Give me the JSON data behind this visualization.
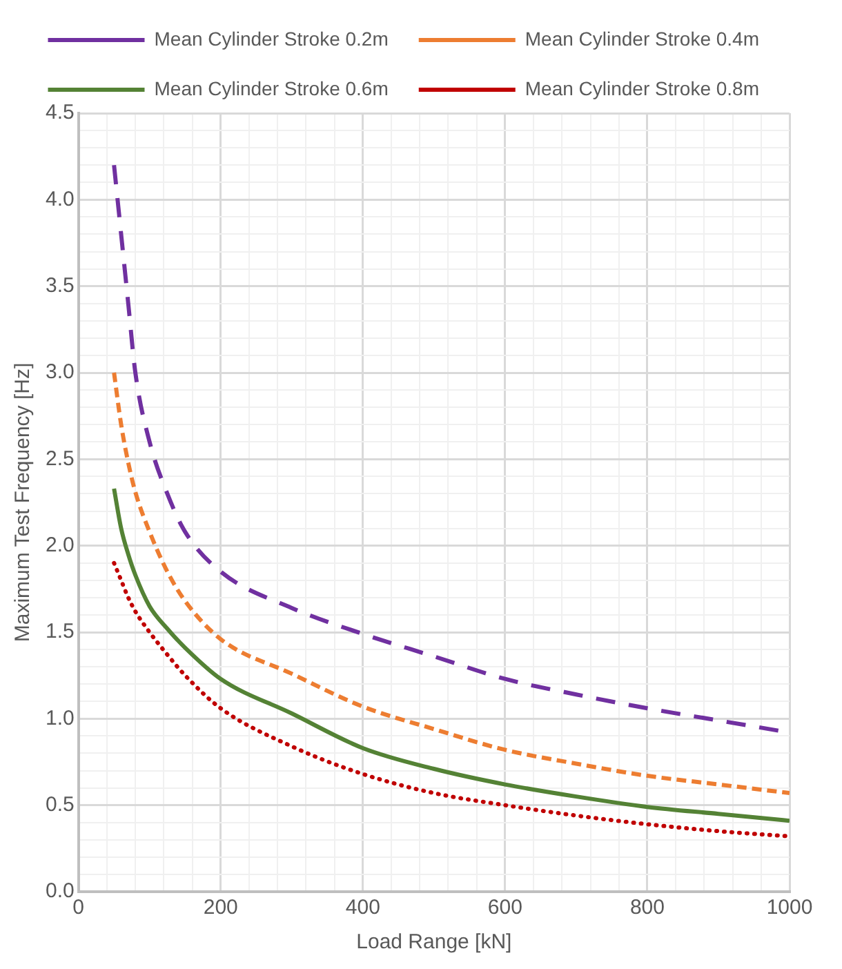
{
  "chart_data": {
    "type": "line",
    "xlabel": "Load Range [kN]",
    "ylabel": "Maximum Test Frequency [Hz]",
    "x": [
      50,
      60,
      70,
      80,
      100,
      125,
      150,
      200,
      300,
      400,
      500,
      600,
      700,
      800,
      900,
      1000
    ],
    "xlim": [
      0,
      1000
    ],
    "xticks": [
      0,
      {
        "value": 40,
        "label": null
      },
      {
        "value": 80,
        "label": null
      },
      {
        "value": 120,
        "label": null
      },
      {
        "value": 160,
        "label": null
      },
      200,
      {
        "value": 240,
        "label": null
      },
      {
        "value": 280,
        "label": null
      },
      {
        "value": 320,
        "label": null
      },
      {
        "value": 360,
        "label": null
      },
      400,
      {
        "value": 440,
        "label": null
      },
      {
        "value": 480,
        "label": null
      },
      {
        "value": 520,
        "label": null
      },
      {
        "value": 560,
        "label": null
      },
      600,
      {
        "value": 640,
        "label": null
      },
      {
        "value": 680,
        "label": null
      },
      {
        "value": 720,
        "label": null
      },
      {
        "value": 760,
        "label": null
      },
      800,
      {
        "value": 840,
        "label": null
      },
      {
        "value": 880,
        "label": null
      },
      {
        "value": 920,
        "label": null
      },
      {
        "value": 960,
        "label": null
      },
      1000
    ],
    "ylim": [
      0,
      4.5
    ],
    "yticks": [
      {
        "value": 0,
        "label": "0.0"
      },
      {
        "value": 0.1,
        "label": null
      },
      {
        "value": 0.2,
        "label": null
      },
      {
        "value": 0.3,
        "label": null
      },
      {
        "value": 0.4,
        "label": null
      },
      {
        "value": 0.5,
        "label": "0.5"
      },
      {
        "value": 0.6,
        "label": null
      },
      {
        "value": 0.7,
        "label": null
      },
      {
        "value": 0.8,
        "label": null
      },
      {
        "value": 0.9,
        "label": null
      },
      {
        "value": 1,
        "label": "1.0"
      },
      {
        "value": 1.1,
        "label": null
      },
      {
        "value": 1.2,
        "label": null
      },
      {
        "value": 1.3,
        "label": null
      },
      {
        "value": 1.4,
        "label": null
      },
      {
        "value": 1.5,
        "label": "1.5"
      },
      {
        "value": 1.6,
        "label": null
      },
      {
        "value": 1.7,
        "label": null
      },
      {
        "value": 1.8,
        "label": null
      },
      {
        "value": 1.9,
        "label": null
      },
      {
        "value": 2,
        "label": "2.0"
      },
      {
        "value": 2.1,
        "label": null
      },
      {
        "value": 2.2,
        "label": null
      },
      {
        "value": 2.3,
        "label": null
      },
      {
        "value": 2.4,
        "label": null
      },
      {
        "value": 2.5,
        "label": "2.5"
      },
      {
        "value": 2.6,
        "label": null
      },
      {
        "value": 2.7,
        "label": null
      },
      {
        "value": 2.8,
        "label": null
      },
      {
        "value": 2.9,
        "label": null
      },
      {
        "value": 3,
        "label": "3.0"
      },
      {
        "value": 3.1,
        "label": null
      },
      {
        "value": 3.2,
        "label": null
      },
      {
        "value": 3.3,
        "label": null
      },
      {
        "value": 3.4,
        "label": null
      },
      {
        "value": 3.5,
        "label": "3.5"
      },
      {
        "value": 3.6,
        "label": null
      },
      {
        "value": 3.7,
        "label": null
      },
      {
        "value": 3.8,
        "label": null
      },
      {
        "value": 3.9,
        "label": null
      },
      {
        "value": 4,
        "label": "4.0"
      },
      {
        "value": 4.1,
        "label": null
      },
      {
        "value": 4.2,
        "label": null
      },
      {
        "value": 4.3,
        "label": null
      },
      {
        "value": 4.4,
        "label": null
      },
      {
        "value": 4.5,
        "label": "4.5"
      }
    ],
    "grid": true,
    "legend": "top",
    "marker": "none",
    "series": [
      {
        "name": "Mean Cylinder Stroke 0.2m",
        "color": "#7030a0",
        "line_style": "dashed",
        "values": [
          4.2,
          3.8,
          3.4,
          3.0,
          2.6,
          2.3,
          2.08,
          1.85,
          1.64,
          1.49,
          1.36,
          1.23,
          1.14,
          1.06,
          0.99,
          0.92
        ]
      },
      {
        "name": "Mean Cylinder Stroke 0.4m",
        "color": "#ed7d31",
        "line_style": "dashed",
        "values": [
          3.0,
          2.7,
          2.48,
          2.31,
          2.08,
          1.85,
          1.68,
          1.46,
          1.26,
          1.07,
          0.94,
          0.82,
          0.74,
          0.67,
          0.62,
          0.57
        ]
      },
      {
        "name": "Mean Cylinder Stroke 0.6m",
        "color": "#548235",
        "line_style": "solid",
        "values": [
          2.33,
          2.1,
          1.95,
          1.83,
          1.65,
          1.52,
          1.41,
          1.23,
          1.03,
          0.83,
          0.71,
          0.62,
          0.55,
          0.49,
          0.45,
          0.41
        ]
      },
      {
        "name": "Mean Cylinder Stroke 0.8m",
        "color": "#c00000",
        "line_style": "dotted",
        "values": [
          1.9,
          1.8,
          1.7,
          1.62,
          1.5,
          1.37,
          1.25,
          1.06,
          0.84,
          0.68,
          0.57,
          0.5,
          0.44,
          0.39,
          0.35,
          0.32
        ]
      }
    ]
  }
}
